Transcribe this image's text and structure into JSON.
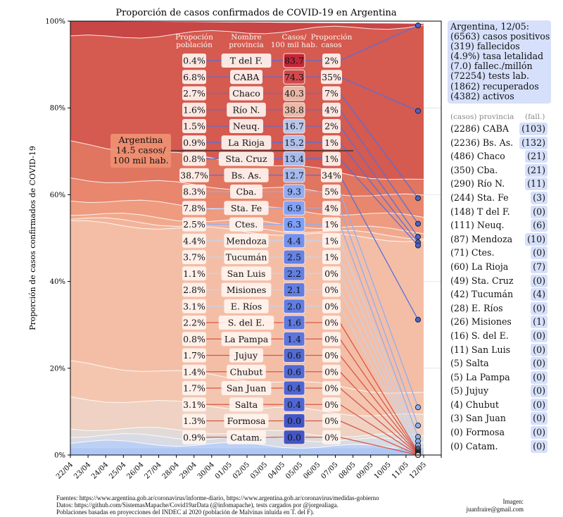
{
  "chart_data": {
    "type": "area",
    "title": "Proporción de casos confirmados de COVID-19 en Argentina",
    "ylabel": "Proporción de casos confirmados de COVID-19",
    "xlabel": "",
    "ylim": [
      0,
      100
    ],
    "yticks": [
      "0%",
      "20%",
      "40%",
      "60%",
      "80%",
      "100%"
    ],
    "x": [
      "22/04",
      "23/04",
      "24/04",
      "25/04",
      "26/04",
      "27/04",
      "28/04",
      "29/04",
      "30/04",
      "01/05",
      "02/05",
      "03/05",
      "04/05",
      "05/05",
      "06/05",
      "07/05",
      "08/05",
      "09/05",
      "10/05",
      "11/05",
      "12/05"
    ],
    "stack_boundaries_approx_percent": {
      "note": "cumulative share boundaries (top of band) at first and last date, bands ordered top to bottom by cases per 100k",
      "T del F.": [
        100,
        99.4
      ],
      "CABA": [
        96.1,
        99.0
      ],
      "Chaco": [
        71.9,
        63.0
      ],
      "Río N.": [
        63.8,
        59.4
      ],
      "Neuq.": [
        59.0,
        54.8
      ],
      "La Rioja": [
        55.8,
        51.5
      ],
      "Sta. Cruz": [
        54.5,
        50.3
      ],
      "Bs. As.": [
        53.6,
        49.5
      ],
      "Cba.": [
        21.2,
        14.0
      ],
      "Sta. Fe": [
        13.2,
        8.8
      ],
      "Ctes.": [
        6.3,
        4.2
      ],
      "Mendoza": [
        4.6,
        3.2
      ],
      "others": [
        3.0,
        1.6
      ]
    },
    "table": {
      "headers": [
        "Propoción\npoblación",
        "Nombre\nprovincia",
        "Casos/\n100 mil hab.",
        "Proporción\ncasos"
      ],
      "rows": [
        {
          "pob": "0.4%",
          "prov": "T del F.",
          "rate": "83.7",
          "prop": "2%",
          "end_pct": 99.0
        },
        {
          "pob": "6.8%",
          "prov": "CABA",
          "rate": "74.3",
          "prop": "35%",
          "end_pct": 79.3
        },
        {
          "pob": "2.7%",
          "prov": "Chaco",
          "rate": "40.3",
          "prop": "7%",
          "end_pct": 59.2
        },
        {
          "pob": "1.6%",
          "prov": "Río N.",
          "rate": "38.8",
          "prop": "4%",
          "end_pct": 53.3
        },
        {
          "pob": "1.5%",
          "prov": "Neuq.",
          "rate": "16.7",
          "prop": "2%",
          "end_pct": 50.3
        },
        {
          "pob": "0.9%",
          "prov": "La Rioja",
          "rate": "15.2",
          "prop": "1%",
          "end_pct": 49.0
        },
        {
          "pob": "0.8%",
          "prov": "Sta. Cruz",
          "rate": "13.4",
          "prop": "1%",
          "end_pct": 48.3
        },
        {
          "pob": "38.7%",
          "prov": "Bs. As.",
          "rate": "12.7",
          "prop": "34%",
          "end_pct": 31.2
        },
        {
          "pob": "8.3%",
          "prov": "Cba.",
          "rate": "9.3",
          "prop": "5%",
          "end_pct": 11.0
        },
        {
          "pob": "7.8%",
          "prov": "Sta. Fe",
          "rate": "6.9",
          "prop": "4%",
          "end_pct": 6.8
        },
        {
          "pob": "2.5%",
          "prov": "Ctes.",
          "rate": "6.3",
          "prop": "1%",
          "end_pct": 4.2
        },
        {
          "pob": "4.4%",
          "prov": "Mendoza",
          "rate": "4.4",
          "prop": "1%",
          "end_pct": 3.2
        },
        {
          "pob": "3.7%",
          "prov": "Tucumán",
          "rate": "2.5",
          "prop": "1%",
          "end_pct": 2.2
        },
        {
          "pob": "1.1%",
          "prov": "San Luis",
          "rate": "2.2",
          "prop": "0%",
          "end_pct": 1.5
        },
        {
          "pob": "2.8%",
          "prov": "Misiones",
          "rate": "2.1",
          "prop": "0%",
          "end_pct": 1.2
        },
        {
          "pob": "3.1%",
          "prov": "E. Ríos",
          "rate": "2.0",
          "prop": "0%",
          "end_pct": 0.9
        },
        {
          "pob": "2.2%",
          "prov": "S. del E.",
          "rate": "1.6",
          "prop": "0%",
          "end_pct": 0.7
        },
        {
          "pob": "0.8%",
          "prov": "La Pampa",
          "rate": "1.4",
          "prop": "0%",
          "end_pct": 0.5
        },
        {
          "pob": "1.7%",
          "prov": "Jujuy",
          "rate": "0.6",
          "prop": "0%",
          "end_pct": 0.4
        },
        {
          "pob": "1.4%",
          "prov": "Chubut",
          "rate": "0.6",
          "prop": "0%",
          "end_pct": 0.3
        },
        {
          "pob": "1.7%",
          "prov": "San Juan",
          "rate": "0.4",
          "prop": "0%",
          "end_pct": 0.2
        },
        {
          "pob": "3.1%",
          "prov": "Salta",
          "rate": "0.4",
          "prop": "0%",
          "end_pct": 0.1
        },
        {
          "pob": "1.3%",
          "prov": "Formosa",
          "rate": "0.0",
          "prop": "0%",
          "end_pct": 0.0
        },
        {
          "pob": "0.9%",
          "prov": "Catam.",
          "rate": "0.0",
          "prop": "0%",
          "end_pct": 0.0
        }
      ]
    },
    "national_line": {
      "label": "Argentina\n14.5 casos/\n100 mil hab.",
      "rate": 14.5
    }
  },
  "summary": {
    "lines": [
      "Argentina, 12/05:",
      "(6563) casos positivos",
      "(319) fallecidos",
      "(4.9%) tasa letalidad",
      "(7.0) fallec./millón",
      "(72254) tests lab.",
      "(1862) recuperados",
      "(4382) activos"
    ]
  },
  "provinces": {
    "header_cases": "(casos) provincia",
    "header_deaths": "(fall.)",
    "rows": [
      {
        "label": "(2286) CABA",
        "deaths": "(103)"
      },
      {
        "label": "(2236) Bs. As.",
        "deaths": "(132)"
      },
      {
        "label": "(486) Chaco",
        "deaths": "(21)"
      },
      {
        "label": "(350) Cba.",
        "deaths": "(21)"
      },
      {
        "label": "(290) Río N.",
        "deaths": "(11)"
      },
      {
        "label": "(244) Sta. Fe",
        "deaths": "(3)"
      },
      {
        "label": "(148) T del F.",
        "deaths": "(0)"
      },
      {
        "label": "(111) Neuq.",
        "deaths": "(6)"
      },
      {
        "label": "(87) Mendoza",
        "deaths": "(10)"
      },
      {
        "label": "(71) Ctes.",
        "deaths": "(0)"
      },
      {
        "label": "(60) La Rioja",
        "deaths": "(7)"
      },
      {
        "label": "(49) Sta. Cruz",
        "deaths": "(0)"
      },
      {
        "label": "(42) Tucumán",
        "deaths": "(4)"
      },
      {
        "label": "(28) E. Ríos",
        "deaths": "(0)"
      },
      {
        "label": "(26) Misiones",
        "deaths": "(1)"
      },
      {
        "label": "(16) S. del E.",
        "deaths": "(0)"
      },
      {
        "label": "(11) San Luis",
        "deaths": "(0)"
      },
      {
        "label": "(5) Salta",
        "deaths": "(0)"
      },
      {
        "label": "(5) La Pampa",
        "deaths": "(0)"
      },
      {
        "label": "(5) Jujuy",
        "deaths": "(0)"
      },
      {
        "label": "(4) Chubut",
        "deaths": "(0)"
      },
      {
        "label": "(3) San Juan",
        "deaths": "(0)"
      },
      {
        "label": "(0) Formosa",
        "deaths": "(0)"
      },
      {
        "label": "(0) Catam.",
        "deaths": "(0)"
      }
    ]
  },
  "footer": {
    "line1": "Fuentes: https://www.argentina.gob.ar/coronavirus/informe-diario, https://www.argentina.gob.ar/coronavirus/medidas-gobierno",
    "line2": "Datos: https://github.com/SistemasMapache/Covid19arData (@infomapache), tests cargados por @jorgealiaga.",
    "line3": "Poblaciones basadas en proyecciones del INDEC al 2020 (población de Malvinas inluída en T. del F).",
    "credit1": "Imagen:",
    "credit2": "juanfraire@gmail.com"
  }
}
